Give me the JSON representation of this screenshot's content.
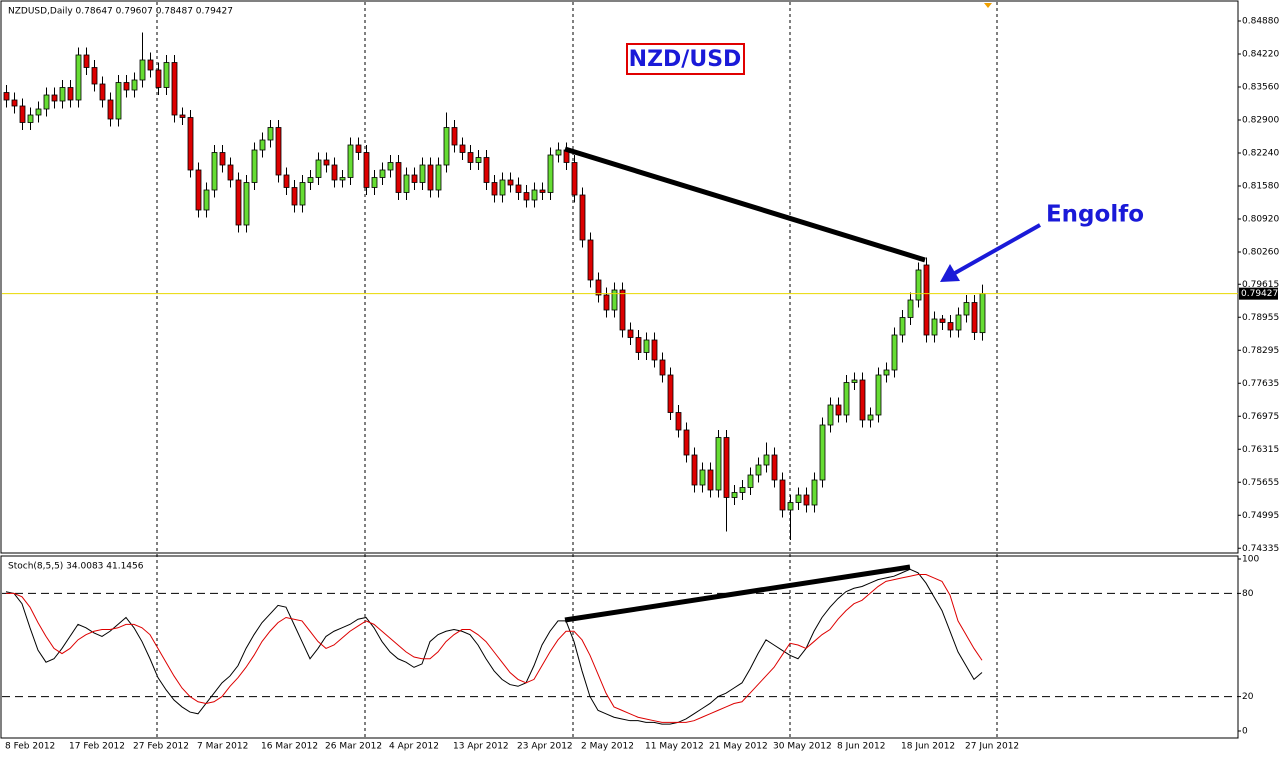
{
  "chart_data": [
    {
      "type": "candlestick",
      "title": "NZDUSD,Daily 0.78647 0.79607 0.78487 0.79427",
      "annotations": [
        "NZD/USD",
        "Engolfo"
      ],
      "open": [
        0.8345,
        0.833,
        0.8318,
        0.8285,
        0.83,
        0.8312,
        0.834,
        0.8328,
        0.8355,
        0.833,
        0.842,
        0.8395,
        0.8362,
        0.833,
        0.8292,
        0.8365,
        0.835,
        0.837,
        0.841,
        0.839,
        0.8355,
        0.8405,
        0.83,
        0.8295,
        0.819,
        0.811,
        0.815,
        0.8225,
        0.82,
        0.817,
        0.808,
        0.8165,
        0.823,
        0.825,
        0.8275,
        0.818,
        0.8155,
        0.812,
        0.8165,
        0.8175,
        0.821,
        0.82,
        0.817,
        0.8175,
        0.824,
        0.8225,
        0.8155,
        0.8175,
        0.819,
        0.8205,
        0.8145,
        0.818,
        0.8165,
        0.82,
        0.815,
        0.82,
        0.8275,
        0.824,
        0.8225,
        0.8205,
        0.8215,
        0.8165,
        0.814,
        0.817,
        0.816,
        0.8145,
        0.813,
        0.815,
        0.8145,
        0.822,
        0.823,
        0.8205,
        0.814,
        0.805,
        0.797,
        0.794,
        0.791,
        0.795,
        0.787,
        0.7855,
        0.7825,
        0.785,
        0.781,
        0.778,
        0.7705,
        0.767,
        0.762,
        0.756,
        0.759,
        0.755,
        0.7655,
        0.7535,
        0.7545,
        0.7555,
        0.758,
        0.76,
        0.762,
        0.757,
        0.751,
        0.7525,
        0.754,
        0.752,
        0.757,
        0.768,
        0.772,
        0.77,
        0.7765,
        0.777,
        0.769,
        0.77,
        0.778,
        0.779,
        0.786,
        0.7895,
        0.793,
        0.8,
        0.786,
        0.7892,
        0.7885,
        0.787,
        0.79,
        0.7925,
        0.78647
      ],
      "high": [
        0.836,
        0.8345,
        0.8333,
        0.8315,
        0.8327,
        0.8355,
        0.8355,
        0.837,
        0.837,
        0.8435,
        0.8435,
        0.841,
        0.8377,
        0.8345,
        0.838,
        0.838,
        0.8385,
        0.8465,
        0.8425,
        0.8405,
        0.842,
        0.842,
        0.8315,
        0.831,
        0.8205,
        0.8165,
        0.824,
        0.824,
        0.8215,
        0.8185,
        0.818,
        0.8245,
        0.8265,
        0.829,
        0.829,
        0.8195,
        0.817,
        0.818,
        0.819,
        0.8225,
        0.8225,
        0.8215,
        0.819,
        0.8255,
        0.8255,
        0.824,
        0.819,
        0.8205,
        0.822,
        0.822,
        0.8195,
        0.8195,
        0.8215,
        0.8215,
        0.8215,
        0.8305,
        0.829,
        0.8255,
        0.824,
        0.823,
        0.823,
        0.818,
        0.8185,
        0.8185,
        0.8175,
        0.816,
        0.8165,
        0.8165,
        0.8235,
        0.8245,
        0.8245,
        0.822,
        0.8155,
        0.8065,
        0.7985,
        0.7955,
        0.7965,
        0.7965,
        0.7885,
        0.787,
        0.7865,
        0.7865,
        0.7825,
        0.7795,
        0.772,
        0.7685,
        0.7635,
        0.7605,
        0.7605,
        0.767,
        0.767,
        0.756,
        0.757,
        0.7595,
        0.7615,
        0.7645,
        0.7635,
        0.7585,
        0.754,
        0.7555,
        0.7555,
        0.7585,
        0.7695,
        0.7735,
        0.7735,
        0.778,
        0.7785,
        0.7785,
        0.7715,
        0.7795,
        0.7805,
        0.7875,
        0.791,
        0.7945,
        0.8005,
        0.8015,
        0.7907,
        0.79,
        0.79,
        0.7915,
        0.794,
        0.794,
        0.79607
      ],
      "low": [
        0.8315,
        0.8303,
        0.827,
        0.827,
        0.8285,
        0.8297,
        0.8313,
        0.8313,
        0.8315,
        0.8315,
        0.838,
        0.8347,
        0.8315,
        0.8277,
        0.8277,
        0.8335,
        0.8335,
        0.8355,
        0.8375,
        0.834,
        0.834,
        0.8285,
        0.828,
        0.8175,
        0.8095,
        0.8095,
        0.8135,
        0.8185,
        0.8155,
        0.8065,
        0.8065,
        0.815,
        0.8215,
        0.8235,
        0.8165,
        0.814,
        0.8105,
        0.8105,
        0.815,
        0.816,
        0.8185,
        0.8155,
        0.8155,
        0.816,
        0.821,
        0.814,
        0.814,
        0.816,
        0.8175,
        0.813,
        0.813,
        0.815,
        0.815,
        0.8135,
        0.8135,
        0.8185,
        0.8225,
        0.821,
        0.819,
        0.819,
        0.815,
        0.8125,
        0.8125,
        0.8145,
        0.813,
        0.8115,
        0.8115,
        0.813,
        0.813,
        0.8205,
        0.819,
        0.8125,
        0.8035,
        0.7955,
        0.7925,
        0.7895,
        0.7895,
        0.7855,
        0.784,
        0.781,
        0.781,
        0.7795,
        0.7765,
        0.769,
        0.7655,
        0.7605,
        0.7545,
        0.7545,
        0.7535,
        0.7535,
        0.7467,
        0.752,
        0.753,
        0.754,
        0.7565,
        0.7585,
        0.7555,
        0.7495,
        0.745,
        0.751,
        0.7505,
        0.7505,
        0.7555,
        0.7665,
        0.7685,
        0.7685,
        0.775,
        0.7675,
        0.7675,
        0.7685,
        0.7765,
        0.7775,
        0.7845,
        0.788,
        0.7915,
        0.7845,
        0.7845,
        0.787,
        0.7855,
        0.7855,
        0.7885,
        0.785,
        0.78487
      ],
      "close": [
        0.833,
        0.8318,
        0.8285,
        0.83,
        0.8312,
        0.834,
        0.8328,
        0.8355,
        0.833,
        0.842,
        0.8395,
        0.8362,
        0.833,
        0.8292,
        0.8365,
        0.835,
        0.837,
        0.841,
        0.839,
        0.8355,
        0.8405,
        0.83,
        0.8295,
        0.819,
        0.811,
        0.815,
        0.8225,
        0.82,
        0.817,
        0.808,
        0.8165,
        0.823,
        0.825,
        0.8275,
        0.818,
        0.8155,
        0.812,
        0.8165,
        0.8175,
        0.821,
        0.82,
        0.817,
        0.8175,
        0.824,
        0.8225,
        0.8155,
        0.8175,
        0.819,
        0.8205,
        0.8145,
        0.818,
        0.8165,
        0.82,
        0.815,
        0.82,
        0.8275,
        0.824,
        0.8225,
        0.8205,
        0.8215,
        0.8165,
        0.814,
        0.817,
        0.816,
        0.8145,
        0.813,
        0.815,
        0.8145,
        0.822,
        0.823,
        0.8205,
        0.814,
        0.805,
        0.797,
        0.794,
        0.791,
        0.795,
        0.787,
        0.7855,
        0.7825,
        0.785,
        0.781,
        0.778,
        0.7705,
        0.767,
        0.762,
        0.756,
        0.759,
        0.755,
        0.7655,
        0.7535,
        0.7545,
        0.7555,
        0.758,
        0.76,
        0.762,
        0.757,
        0.751,
        0.7525,
        0.754,
        0.752,
        0.757,
        0.768,
        0.772,
        0.77,
        0.7765,
        0.777,
        0.769,
        0.77,
        0.778,
        0.779,
        0.786,
        0.7895,
        0.793,
        0.799,
        0.786,
        0.7892,
        0.7885,
        0.787,
        0.79,
        0.7925,
        0.7865,
        0.79427
      ],
      "up_color": "#66dd33",
      "down_color": "#dd0000",
      "current_price": {
        "value": 0.79427,
        "label": "0.79427"
      },
      "current_color": "#e8d800",
      "ylim": [
        0.7424,
        0.8524
      ],
      "yticks": [
        {
          "value": 0.8488,
          "label": "0.84880"
        },
        {
          "value": 0.8422,
          "label": "0.84220"
        },
        {
          "value": 0.8356,
          "label": "0.83560"
        },
        {
          "value": 0.829,
          "label": "0.82900"
        },
        {
          "value": 0.8224,
          "label": "0.82240"
        },
        {
          "value": 0.8158,
          "label": "0.81580"
        },
        {
          "value": 0.8092,
          "label": "0.80920"
        },
        {
          "value": 0.8026,
          "label": "0.80260"
        },
        {
          "value": 0.79615,
          "label": "0.79615"
        },
        {
          "value": 0.78955,
          "label": "0.78955"
        },
        {
          "value": 0.78295,
          "label": "0.78295"
        },
        {
          "value": 0.77635,
          "label": "0.77635"
        },
        {
          "value": 0.76975,
          "label": "0.76975"
        },
        {
          "value": 0.76315,
          "label": "0.76315"
        },
        {
          "value": 0.75655,
          "label": "0.75655"
        },
        {
          "value": 0.74995,
          "label": "0.74995"
        },
        {
          "value": 0.74335,
          "label": "0.74335"
        }
      ],
      "grid": true
    },
    {
      "type": "line",
      "title": "Stoch(8,5,5) 34.0083 41.1456",
      "categories": [
        "8 Feb 2012",
        null,
        null,
        null,
        null,
        null,
        null,
        null,
        "17 Feb 2012",
        null,
        null,
        null,
        null,
        null,
        null,
        null,
        "27 Feb 2012",
        null,
        null,
        null,
        null,
        null,
        null,
        null,
        "7 Mar 2012",
        null,
        null,
        null,
        null,
        null,
        null,
        null,
        "16 Mar 2012",
        null,
        null,
        null,
        null,
        null,
        null,
        null,
        "26 Mar 2012",
        null,
        null,
        null,
        null,
        null,
        null,
        null,
        "4 Apr 2012",
        null,
        null,
        null,
        null,
        null,
        null,
        null,
        "13 Apr 2012",
        null,
        null,
        null,
        null,
        null,
        null,
        null,
        "23 Apr 2012",
        null,
        null,
        null,
        null,
        null,
        null,
        null,
        "2 May 2012",
        null,
        null,
        null,
        null,
        null,
        null,
        null,
        "11 May 2012",
        null,
        null,
        null,
        null,
        null,
        null,
        null,
        "21 May 2012",
        null,
        null,
        null,
        null,
        null,
        null,
        null,
        "30 May 2012",
        null,
        null,
        null,
        null,
        null,
        null,
        null,
        "8 Jun 2012",
        null,
        null,
        null,
        null,
        null,
        null,
        null,
        "18 Jun 2012",
        null,
        null,
        null,
        null,
        null,
        null,
        null,
        "27 Jun 2012",
        null,
        null
      ],
      "series": [
        {
          "color": "#000000",
          "values": [
            81,
            80,
            74,
            60,
            47,
            40,
            42,
            48,
            55,
            62,
            60,
            57,
            55,
            58,
            62,
            66,
            60,
            52,
            42,
            31,
            24,
            18,
            14,
            11,
            10,
            16,
            22,
            28,
            32,
            38,
            48,
            56,
            63,
            68,
            73,
            72,
            62,
            52,
            42,
            48,
            55,
            58,
            60,
            62,
            65,
            66,
            60,
            52,
            46,
            42,
            40,
            37,
            39,
            52,
            56,
            58,
            59,
            58,
            56,
            50,
            42,
            35,
            30,
            27,
            26,
            28,
            38,
            50,
            58,
            64,
            64,
            52,
            35,
            20,
            12,
            10,
            8,
            7,
            6,
            6,
            5,
            5,
            4,
            4,
            5,
            7,
            10,
            13,
            16,
            20,
            22,
            25,
            28,
            36,
            45,
            53,
            50,
            47,
            44,
            42,
            48,
            58,
            66,
            72,
            77,
            81,
            83,
            84,
            86,
            88,
            89,
            90,
            92,
            94,
            92,
            86,
            78,
            70,
            58,
            46,
            38,
            30,
            34.0083
          ]
        },
        {
          "color": "#dd0000",
          "values": [
            80,
            80,
            78,
            72,
            63,
            55,
            48,
            45,
            48,
            53,
            56,
            58,
            59,
            59,
            60,
            62,
            62,
            60,
            56,
            48,
            40,
            32,
            25,
            20,
            17,
            16,
            17,
            20,
            26,
            31,
            37,
            44,
            52,
            58,
            63,
            66,
            65,
            64,
            58,
            52,
            48,
            50,
            54,
            58,
            61,
            64,
            62,
            58,
            54,
            50,
            46,
            43,
            42,
            42,
            46,
            52,
            56,
            59,
            59,
            56,
            52,
            46,
            40,
            34,
            30,
            28,
            30,
            38,
            46,
            53,
            58,
            58,
            53,
            44,
            33,
            22,
            14,
            12,
            10,
            8,
            7,
            6,
            5,
            5,
            5,
            5,
            6,
            8,
            10,
            12,
            14,
            16,
            17,
            22,
            27,
            32,
            37,
            44,
            51,
            50,
            48,
            52,
            56,
            59,
            65,
            70,
            74,
            76,
            80,
            84,
            87,
            88,
            89,
            90,
            91,
            91,
            89,
            87,
            79,
            64,
            56,
            48,
            41.1456
          ]
        }
      ],
      "ylim": [
        0,
        100
      ],
      "yticks": [
        0,
        20,
        80,
        100
      ],
      "levels": [
        20,
        80
      ]
    }
  ]
}
